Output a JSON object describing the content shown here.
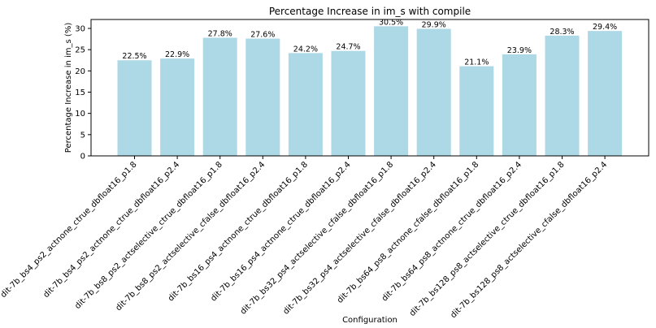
{
  "chart_data": {
    "type": "bar",
    "title": "Percentage Increase in im_s with compile",
    "xlabel": "Configuration",
    "ylabel": "Percentage Increase in im_s (%)",
    "ylim": [
      0,
      32.1
    ],
    "yticks": [
      0,
      5,
      10,
      15,
      20,
      25,
      30
    ],
    "grid": false,
    "bar_color": "#add8e6",
    "categories": [
      "dit-7b_bs4_ps2_actnone_ctrue_dbfloat16_p1.8",
      "dit-7b_bs4_ps2_actnone_ctrue_dbfloat16_p2.4",
      "dit-7b_bs8_ps2_actselective_ctrue_dbfloat16_p1.8",
      "dit-7b_bs8_ps2_actselective_cfalse_dbfloat16_p2.4",
      "dit-7b_bs16_ps4_actnone_ctrue_dbfloat16_p1.8",
      "dit-7b_bs16_ps4_actnone_ctrue_dbfloat16_p2.4",
      "dit-7b_bs32_ps4_actselective_cfalse_dbfloat16_p1.8",
      "dit-7b_bs32_ps4_actselective_cfalse_dbfloat16_p2.4",
      "dit-7b_bs64_ps8_actnone_cfalse_dbfloat16_p1.8",
      "dit-7b_bs64_ps8_actnone_ctrue_dbfloat16_p2.4",
      "dit-7b_bs128_ps8_actselective_ctrue_dbfloat16_p1.8",
      "dit-7b_bs128_ps8_actselective_cfalse_dbfloat16_p2.4"
    ],
    "values": [
      22.5,
      22.9,
      27.8,
      27.6,
      24.2,
      24.7,
      30.5,
      29.9,
      21.1,
      23.9,
      28.3,
      29.4
    ],
    "data_labels": [
      "22.5%",
      "22.9%",
      "27.8%",
      "27.6%",
      "24.2%",
      "24.7%",
      "30.5%",
      "29.9%",
      "21.1%",
      "23.9%",
      "28.3%",
      "29.4%"
    ]
  }
}
